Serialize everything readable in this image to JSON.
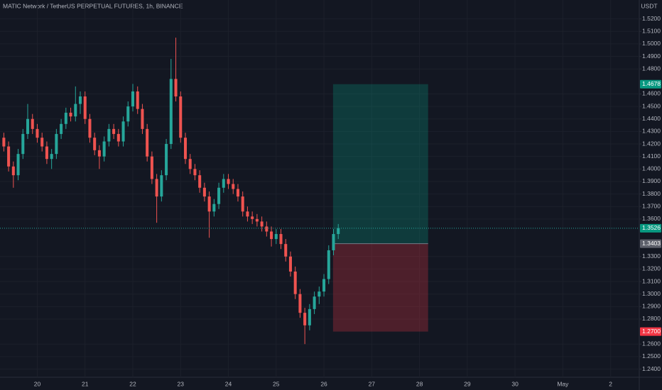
{
  "chart_data": {
    "type": "candlestick",
    "title": "MATIC Network / TetherUS PERPETUAL FUTURES, 1h, BINANCE",
    "currency": "USDT",
    "up_color": "#26a69a",
    "down_color": "#ef5350",
    "x": [
      19.3,
      19.4,
      19.5,
      19.6,
      19.7,
      19.8,
      19.9,
      20.0,
      20.1,
      20.2,
      20.3,
      20.4,
      20.5,
      20.6,
      20.7,
      20.8,
      20.9,
      21.0,
      21.1,
      21.2,
      21.3,
      21.4,
      21.5,
      21.6,
      21.7,
      21.8,
      21.9,
      22.0,
      22.1,
      22.2,
      22.3,
      22.4,
      22.5,
      22.6,
      22.7,
      22.8,
      22.9,
      23.0,
      23.1,
      23.2,
      23.3,
      23.4,
      23.5,
      23.6,
      23.7,
      23.8,
      23.9,
      24.0,
      24.1,
      24.2,
      24.3,
      24.4,
      24.5,
      24.6,
      24.7,
      24.8,
      24.9,
      25.0,
      25.1,
      25.2,
      25.3,
      25.4,
      25.5,
      25.6,
      25.7,
      25.8,
      25.9,
      26.0,
      26.1,
      26.2,
      26.3
    ],
    "candles": [
      [
        1.425,
        1.429,
        1.414,
        1.418
      ],
      [
        1.418,
        1.422,
        1.398,
        1.402
      ],
      [
        1.402,
        1.406,
        1.385,
        1.395
      ],
      [
        1.395,
        1.416,
        1.391,
        1.412
      ],
      [
        1.412,
        1.432,
        1.408,
        1.428
      ],
      [
        1.428,
        1.452,
        1.424,
        1.44
      ],
      [
        1.44,
        1.444,
        1.428,
        1.432
      ],
      [
        1.432,
        1.436,
        1.421,
        1.425
      ],
      [
        1.425,
        1.429,
        1.414,
        1.418
      ],
      [
        1.418,
        1.422,
        1.404,
        1.408
      ],
      [
        1.408,
        1.416,
        1.4,
        1.412
      ],
      [
        1.412,
        1.432,
        1.408,
        1.428
      ],
      [
        1.428,
        1.44,
        1.424,
        1.436
      ],
      [
        1.436,
        1.449,
        1.432,
        1.445
      ],
      [
        1.445,
        1.449,
        1.438,
        1.442
      ],
      [
        1.442,
        1.466,
        1.438,
        1.452
      ],
      [
        1.452,
        1.462,
        1.444,
        1.458
      ],
      [
        1.458,
        1.462,
        1.436,
        1.44
      ],
      [
        1.44,
        1.444,
        1.421,
        1.425
      ],
      [
        1.425,
        1.429,
        1.411,
        1.415
      ],
      [
        1.415,
        1.419,
        1.4,
        1.41
      ],
      [
        1.41,
        1.426,
        1.406,
        1.422
      ],
      [
        1.422,
        1.436,
        1.418,
        1.432
      ],
      [
        1.432,
        1.436,
        1.424,
        1.428
      ],
      [
        1.428,
        1.432,
        1.418,
        1.422
      ],
      [
        1.422,
        1.442,
        1.418,
        1.438
      ],
      [
        1.438,
        1.454,
        1.434,
        1.45
      ],
      [
        1.45,
        1.468,
        1.446,
        1.462
      ],
      [
        1.462,
        1.466,
        1.444,
        1.448
      ],
      [
        1.448,
        1.452,
        1.428,
        1.432
      ],
      [
        1.432,
        1.436,
        1.406,
        1.41
      ],
      [
        1.41,
        1.414,
        1.388,
        1.392
      ],
      [
        1.392,
        1.396,
        1.357,
        1.378
      ],
      [
        1.378,
        1.399,
        1.374,
        1.395
      ],
      [
        1.395,
        1.424,
        1.391,
        1.42
      ],
      [
        1.42,
        1.488,
        1.416,
        1.472
      ],
      [
        1.472,
        1.505,
        1.454,
        1.458
      ],
      [
        1.458,
        1.462,
        1.421,
        1.425
      ],
      [
        1.425,
        1.429,
        1.404,
        1.408
      ],
      [
        1.408,
        1.412,
        1.396,
        1.4
      ],
      [
        1.4,
        1.404,
        1.391,
        1.395
      ],
      [
        1.395,
        1.399,
        1.381,
        1.385
      ],
      [
        1.385,
        1.389,
        1.374,
        1.378
      ],
      [
        1.378,
        1.382,
        1.345,
        1.366
      ],
      [
        1.366,
        1.376,
        1.362,
        1.372
      ],
      [
        1.372,
        1.389,
        1.368,
        1.385
      ],
      [
        1.385,
        1.396,
        1.381,
        1.392
      ],
      [
        1.392,
        1.396,
        1.384,
        1.388
      ],
      [
        1.388,
        1.392,
        1.38,
        1.384
      ],
      [
        1.384,
        1.388,
        1.374,
        1.378
      ],
      [
        1.378,
        1.382,
        1.362,
        1.366
      ],
      [
        1.366,
        1.37,
        1.358,
        1.362
      ],
      [
        1.362,
        1.366,
        1.356,
        1.36
      ],
      [
        1.36,
        1.364,
        1.354,
        1.358
      ],
      [
        1.358,
        1.362,
        1.35,
        1.354
      ],
      [
        1.354,
        1.358,
        1.346,
        1.35
      ],
      [
        1.35,
        1.354,
        1.338,
        1.344
      ],
      [
        1.344,
        1.352,
        1.34,
        1.348
      ],
      [
        1.348,
        1.352,
        1.336,
        1.34
      ],
      [
        1.34,
        1.344,
        1.326,
        1.33
      ],
      [
        1.33,
        1.334,
        1.314,
        1.318
      ],
      [
        1.318,
        1.322,
        1.296,
        1.3
      ],
      [
        1.3,
        1.304,
        1.281,
        1.285
      ],
      [
        1.285,
        1.289,
        1.26,
        1.275
      ],
      [
        1.275,
        1.292,
        1.271,
        1.288
      ],
      [
        1.288,
        1.302,
        1.284,
        1.298
      ],
      [
        1.298,
        1.306,
        1.292,
        1.302
      ],
      [
        1.302,
        1.316,
        1.298,
        1.312
      ],
      [
        1.312,
        1.339,
        1.308,
        1.335
      ],
      [
        1.335,
        1.352,
        1.331,
        1.348
      ],
      [
        1.348,
        1.356,
        1.344,
        1.3526
      ]
    ],
    "xlim": [
      19.22,
      32.6
    ],
    "xticks": [
      20,
      21,
      22,
      23,
      24,
      25,
      26,
      27,
      28,
      29,
      30,
      {
        "value": 31,
        "label": "May"
      },
      {
        "value": 32,
        "label": "2"
      }
    ],
    "ylim": [
      1.2335,
      1.5351
    ],
    "yticks": [
      {
        "value": 1.52,
        "label": "1.5200"
      },
      {
        "value": 1.51,
        "label": "1.5100"
      },
      {
        "value": 1.5,
        "label": "1.5000"
      },
      {
        "value": 1.49,
        "label": "1.4900"
      },
      {
        "value": 1.48,
        "label": "1.4800"
      },
      {
        "value": 1.46,
        "label": "1.4600"
      },
      {
        "value": 1.45,
        "label": "1.4500"
      },
      {
        "value": 1.44,
        "label": "1.4400"
      },
      {
        "value": 1.43,
        "label": "1.4300"
      },
      {
        "value": 1.42,
        "label": "1.4200"
      },
      {
        "value": 1.41,
        "label": "1.4100"
      },
      {
        "value": 1.4,
        "label": "1.4000"
      },
      {
        "value": 1.39,
        "label": "1.3900"
      },
      {
        "value": 1.38,
        "label": "1.3800"
      },
      {
        "value": 1.37,
        "label": "1.3700"
      },
      {
        "value": 1.36,
        "label": "1.3600"
      },
      {
        "value": 1.33,
        "label": "1.3300"
      },
      {
        "value": 1.32,
        "label": "1.3200"
      },
      {
        "value": 1.31,
        "label": "1.3100"
      },
      {
        "value": 1.3,
        "label": "1.3000"
      },
      {
        "value": 1.29,
        "label": "1.2900"
      },
      {
        "value": 1.28,
        "label": "1.2800"
      },
      {
        "value": 1.26,
        "label": "1.2600"
      },
      {
        "value": 1.25,
        "label": "1.2500"
      },
      {
        "value": 1.24,
        "label": "1.2400"
      }
    ],
    "grid": true,
    "last_price": 1.3526,
    "position": {
      "target": 1.4678,
      "entry": 1.3403,
      "stop": {
        "value": 1.27,
        "label": "1.2700"
      },
      "x_range": [
        26.19,
        28.18
      ]
    }
  }
}
